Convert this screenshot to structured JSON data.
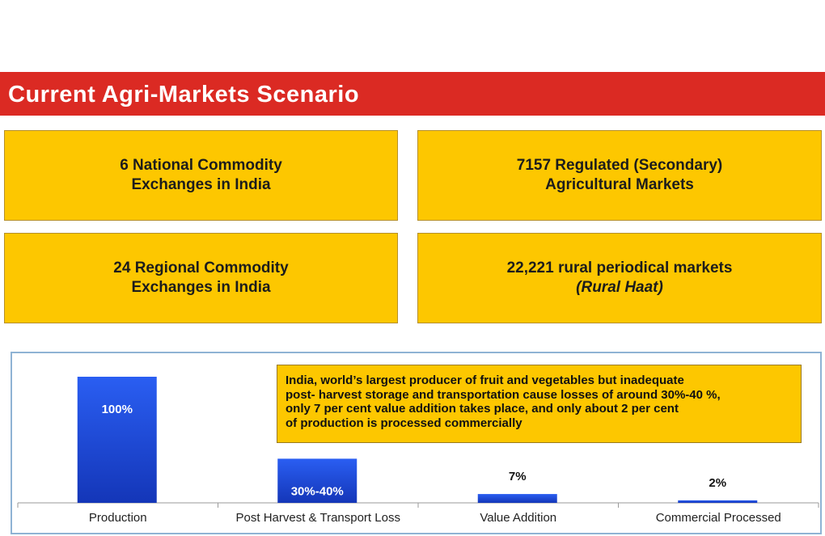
{
  "title": "Current Agri-Markets Scenario",
  "cards": [
    {
      "lines": [
        "6 National Commodity",
        "Exchanges in India"
      ]
    },
    {
      "lines": [
        "7157 Regulated (Secondary)",
        "Agricultural Markets"
      ]
    },
    {
      "lines": [
        "24 Regional Commodity",
        "Exchanges in India"
      ]
    },
    {
      "lines": [
        "22,221 rural periodical markets",
        "(Rural Haat)"
      ]
    }
  ],
  "note": {
    "lines": [
      "India, world’s largest producer of fruit and vegetables but inadequate",
      "post- harvest storage and transportation cause losses of around 30%-40 %,",
      "only 7 per cent value addition takes place, and only about 2 per cent",
      "of production is processed commercially"
    ]
  },
  "colors": {
    "title_bar": "#db2a23",
    "card": "#fdc700",
    "bar": "#1f4fe0",
    "panel_border": "#8fb3d4"
  },
  "chart_data": {
    "type": "bar",
    "categories": [
      "Production",
      "Post Harvest & Transport Loss",
      "Value Addition",
      "Commercial Processed"
    ],
    "values": [
      100,
      35,
      7,
      2
    ],
    "data_labels": [
      "100%",
      "30%-40%",
      "7%",
      "2%"
    ],
    "title": "",
    "xlabel": "",
    "ylabel": "",
    "ylim": [
      0,
      100
    ],
    "grid": false,
    "legend": "none"
  }
}
